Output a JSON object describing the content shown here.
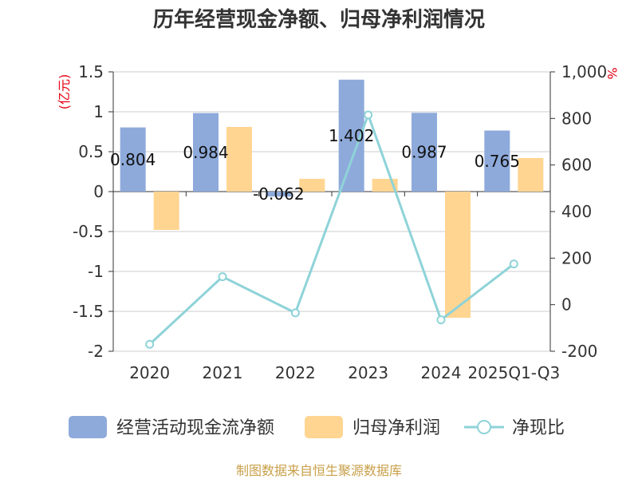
{
  "chart_data": {
    "type": "bar",
    "title": "历年经营现金净额、归母净利润情况",
    "categories": [
      "2020",
      "2021",
      "2022",
      "2023",
      "2024",
      "2025Q1-Q3"
    ],
    "series": [
      {
        "name": "经营活动现金流净额",
        "type": "bar",
        "axis": "left",
        "color": "#8eaadb",
        "values": [
          0.804,
          0.984,
          -0.062,
          1.402,
          0.987,
          0.765
        ],
        "labels": [
          "0.804",
          "0.984",
          "-0.062",
          "1.402",
          "0.987",
          "0.765"
        ]
      },
      {
        "name": "归母净利润",
        "type": "bar",
        "axis": "left",
        "color": "#ffd591",
        "values": [
          -0.48,
          0.81,
          0.16,
          0.16,
          -1.58,
          0.42
        ]
      },
      {
        "name": "净现比",
        "type": "line",
        "axis": "right",
        "color": "#8ed3d8",
        "values": [
          -170,
          120,
          -35,
          815,
          -65,
          175
        ]
      }
    ],
    "y_left": {
      "unit": "(亿元)",
      "ylim": [
        -2,
        1.5
      ],
      "ticks": [
        "-2",
        "-1.5",
        "-1",
        "-0.5",
        "0",
        "0.5",
        "1",
        "1.5"
      ]
    },
    "y_right": {
      "unit": "%",
      "ylim": [
        -200,
        1000
      ],
      "ticks": [
        "-200",
        "0",
        "200",
        "400",
        "600",
        "800",
        "1,000"
      ]
    },
    "legend_position": "bottom",
    "grid": true
  },
  "source_text": "制图数据来自恒生聚源数据库"
}
